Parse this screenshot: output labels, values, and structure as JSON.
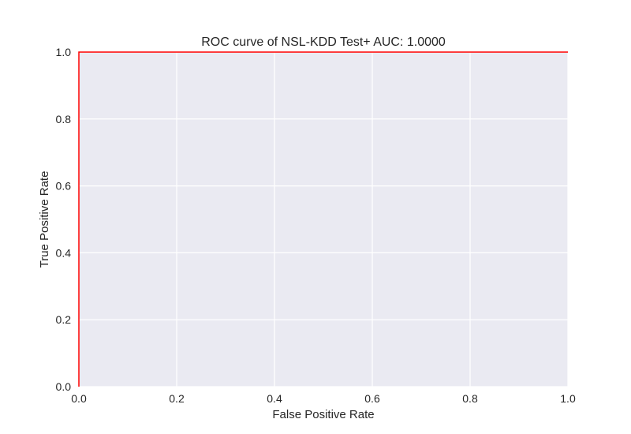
{
  "chart_data": {
    "type": "line",
    "title": "ROC curve of NSL-KDD Test+ AUC: 1.0000",
    "xlabel": "False Positive Rate",
    "ylabel": "True Positive Rate",
    "xlim": [
      0.0,
      1.0
    ],
    "ylim": [
      0.0,
      1.0
    ],
    "xticks": [
      "0.0",
      "0.2",
      "0.4",
      "0.6",
      "0.8",
      "1.0"
    ],
    "yticks": [
      "0.0",
      "0.2",
      "0.4",
      "0.6",
      "0.8",
      "1.0"
    ],
    "grid": true,
    "legend": "none",
    "series": [
      {
        "x": [
          0.0,
          0.0,
          1.0
        ],
        "y": [
          0.0,
          1.0,
          1.0
        ],
        "color": "#ff0000"
      }
    ],
    "colors": {
      "plot_background": "#eaeaf2",
      "grid": "#ffffff",
      "text": "#262626"
    }
  }
}
